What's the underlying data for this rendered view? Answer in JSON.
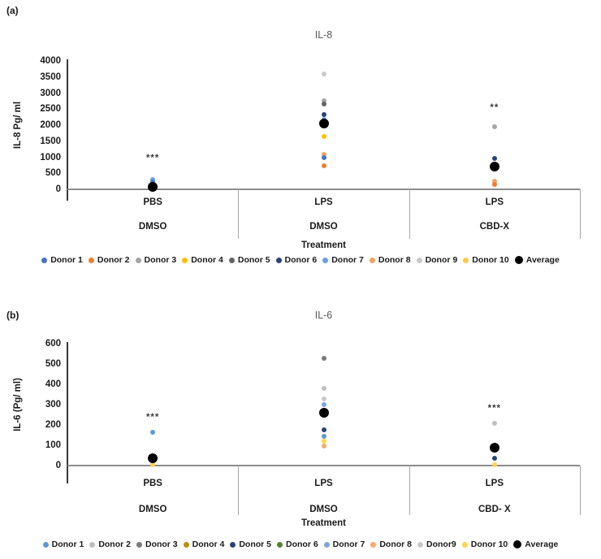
{
  "chart_data": [
    {
      "id": "a",
      "panel_label": "(a)",
      "type": "scatter",
      "title": "IL-8",
      "xlabel": "Treatment",
      "ylabel": "IL-8 Pg/ ml",
      "ylim": [
        0,
        4000
      ],
      "yticks": [
        4000,
        3500,
        3000,
        2500,
        2000,
        1500,
        1000,
        500,
        0
      ],
      "grid": false,
      "legend_position": "bottom",
      "categories": [
        {
          "top": "PBS",
          "bottom": "DMSO"
        },
        {
          "top": "LPS",
          "bottom": "DMSO"
        },
        {
          "top": "LPS",
          "bottom": "CBD-X"
        }
      ],
      "annotations": [
        {
          "cat": 0,
          "text": "***",
          "value": 950
        },
        {
          "cat": 2,
          "text": "**",
          "value": 2530
        }
      ],
      "legend": [
        {
          "label": "Donor 1",
          "color": "#4472C4"
        },
        {
          "label": "Donor 2",
          "color": "#ED7D31"
        },
        {
          "label": "Donor 3",
          "color": "#A5A5A5"
        },
        {
          "label": "Donor 4",
          "color": "#FFC000"
        },
        {
          "label": "Donor 5",
          "color": "#636363"
        },
        {
          "label": "Donor 6",
          "color": "#264478"
        },
        {
          "label": "Donor 7",
          "color": "#69A2DC"
        },
        {
          "label": "Donor 8",
          "color": "#F2A25C"
        },
        {
          "label": "Donor 9",
          "color": "#C9C9C9"
        },
        {
          "label": "Donor 10",
          "color": "#FFC94A"
        },
        {
          "label": "Average",
          "color": "#000000"
        }
      ],
      "points": [
        {
          "cat": 0,
          "donor": "Donor 7",
          "value": 300,
          "color": "#69A2DC"
        },
        {
          "cat": 0,
          "donor": "Donor 1",
          "value": 230,
          "color": "#4472C4"
        },
        {
          "cat": 0,
          "donor": "Donor 4",
          "value": 25,
          "color": "#FFC000"
        },
        {
          "cat": 0,
          "donor": "Donor 2",
          "value": 10,
          "color": "#ED7D31"
        },
        {
          "cat": 0,
          "donor": "Average",
          "value": 80,
          "color": "#000000",
          "average": true
        },
        {
          "cat": 1,
          "donor": "Donor 9",
          "value": 3600,
          "color": "#C9C9C9"
        },
        {
          "cat": 1,
          "donor": "Donor 3",
          "value": 2750,
          "color": "#A5A5A5"
        },
        {
          "cat": 1,
          "donor": "Donor 5",
          "value": 2650,
          "color": "#636363"
        },
        {
          "cat": 1,
          "donor": "Donor 6",
          "value": 2330,
          "color": "#264478"
        },
        {
          "cat": 1,
          "donor": "Donor 7",
          "value": 2180,
          "color": "#69A2DC"
        },
        {
          "cat": 1,
          "donor": "Donor 4",
          "value": 1650,
          "color": "#FFC000"
        },
        {
          "cat": 1,
          "donor": "Donor 8",
          "value": 1090,
          "color": "#F2A25C"
        },
        {
          "cat": 1,
          "donor": "Donor 1",
          "value": 975,
          "color": "#4472C4"
        },
        {
          "cat": 1,
          "donor": "Donor 2",
          "value": 730,
          "color": "#ED7D31"
        },
        {
          "cat": 1,
          "donor": "Average",
          "value": 2050,
          "color": "#000000",
          "average": true
        },
        {
          "cat": 2,
          "donor": "Donor 3",
          "value": 1950,
          "color": "#A5A5A5"
        },
        {
          "cat": 2,
          "donor": "Donor 6",
          "value": 950,
          "color": "#264478"
        },
        {
          "cat": 2,
          "donor": "Donor 8",
          "value": 250,
          "color": "#F2A25C"
        },
        {
          "cat": 2,
          "donor": "Donor 2",
          "value": 155,
          "color": "#ED7D31"
        },
        {
          "cat": 2,
          "donor": "Average",
          "value": 700,
          "color": "#000000",
          "average": true
        }
      ]
    },
    {
      "id": "b",
      "panel_label": "(b)",
      "type": "scatter",
      "title": "IL-6",
      "xlabel": "Treatment",
      "ylabel": "IL-6 (Pg/ ml)",
      "ylim": [
        0,
        600
      ],
      "yticks": [
        600,
        500,
        400,
        300,
        200,
        100,
        0
      ],
      "grid": false,
      "legend_position": "bottom",
      "categories": [
        {
          "top": "PBS",
          "bottom": "DMSO"
        },
        {
          "top": "LPS",
          "bottom": "DMSO"
        },
        {
          "top": "LPS",
          "bottom": "CBD- X"
        }
      ],
      "annotations": [
        {
          "cat": 0,
          "text": "***",
          "value": 235
        },
        {
          "cat": 2,
          "text": "***",
          "value": 280
        }
      ],
      "legend": [
        {
          "label": "Donor 1",
          "color": "#5B9BD5"
        },
        {
          "label": "Donor 2",
          "color": "#BFBFBF"
        },
        {
          "label": "Donor 3",
          "color": "#7B7B7B"
        },
        {
          "label": "Donor 4",
          "color": "#BF8F00"
        },
        {
          "label": "Donor 5",
          "color": "#264478"
        },
        {
          "label": "Donor 6",
          "color": "#548235"
        },
        {
          "label": "Donor 7",
          "color": "#7CA7DC"
        },
        {
          "label": "Donor 8",
          "color": "#F4A96D"
        },
        {
          "label": "Donor9",
          "color": "#C9C9C9"
        },
        {
          "label": "Donor 10",
          "color": "#FFD34E"
        },
        {
          "label": "Average",
          "color": "#000000"
        }
      ],
      "points": [
        {
          "cat": 0,
          "donor": "Donor 1",
          "value": 165,
          "color": "#5B9BD5"
        },
        {
          "cat": 0,
          "donor": "Donor 10",
          "value": 5,
          "color": "#FFD34E"
        },
        {
          "cat": 0,
          "donor": "Average",
          "value": 35,
          "color": "#000000",
          "average": true
        },
        {
          "cat": 1,
          "donor": "Donor 3",
          "value": 530,
          "color": "#7B7B7B"
        },
        {
          "cat": 1,
          "donor": "Donor 2",
          "value": 380,
          "color": "#BFBFBF"
        },
        {
          "cat": 1,
          "donor": "Donor9",
          "value": 330,
          "color": "#C9C9C9"
        },
        {
          "cat": 1,
          "donor": "Donor 7",
          "value": 300,
          "color": "#7CA7DC"
        },
        {
          "cat": 1,
          "donor": "Donor 5",
          "value": 175,
          "color": "#264478"
        },
        {
          "cat": 1,
          "donor": "Donor 1",
          "value": 145,
          "color": "#5B9BD5"
        },
        {
          "cat": 1,
          "donor": "Donor 10",
          "value": 120,
          "color": "#FFD34E"
        },
        {
          "cat": 1,
          "donor": "Donor 8",
          "value": 95,
          "color": "#F4A96D"
        },
        {
          "cat": 1,
          "donor": "Average",
          "value": 260,
          "color": "#000000",
          "average": true
        },
        {
          "cat": 2,
          "donor": "Donor 2",
          "value": 210,
          "color": "#BFBFBF"
        },
        {
          "cat": 2,
          "donor": "Donor 5",
          "value": 35,
          "color": "#264478"
        },
        {
          "cat": 2,
          "donor": "Donor 10",
          "value": 5,
          "color": "#FFD34E"
        },
        {
          "cat": 2,
          "donor": "Average",
          "value": 90,
          "color": "#000000",
          "average": true
        }
      ]
    }
  ]
}
